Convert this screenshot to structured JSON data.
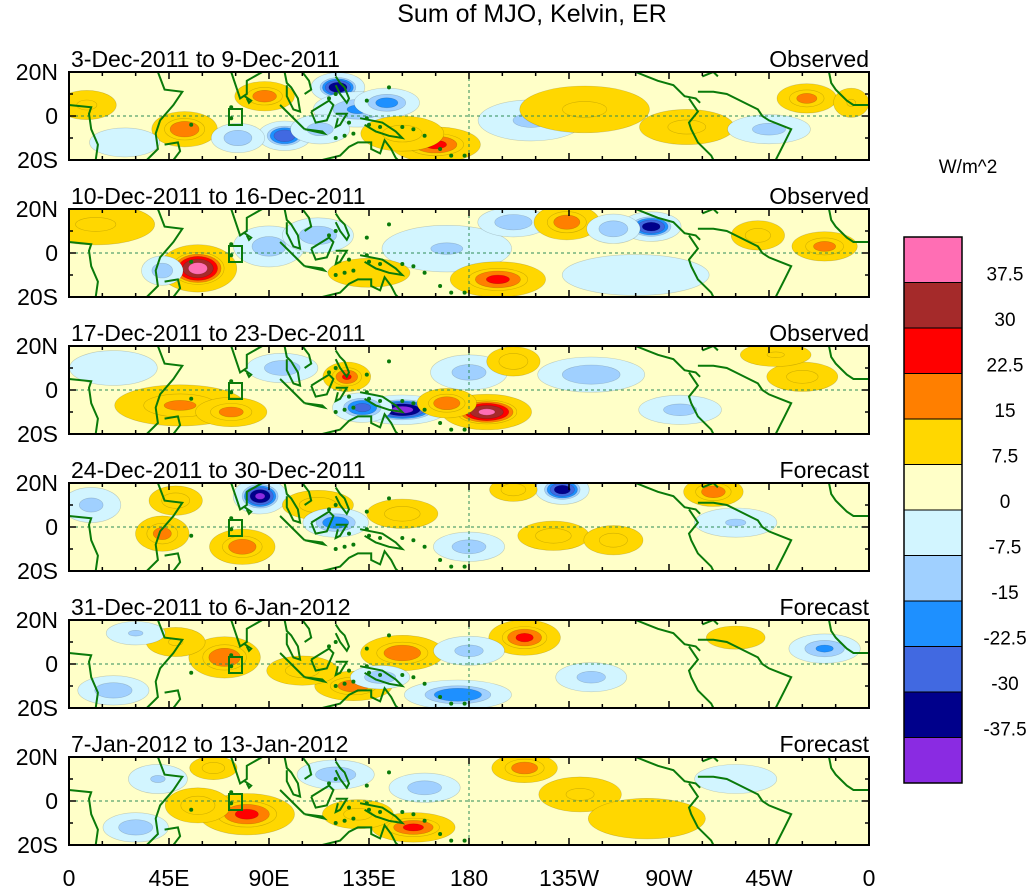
{
  "chart_data": {
    "type": "heatmap",
    "title": "Sum of MJO, Kelvin, ER",
    "xlabel": "",
    "ylabel": "",
    "lon_range": [
      0,
      360
    ],
    "lat_range": [
      -20,
      20
    ],
    "x_ticks": [
      {
        "lon": 0,
        "label": "0"
      },
      {
        "lon": 45,
        "label": "45E"
      },
      {
        "lon": 90,
        "label": "90E"
      },
      {
        "lon": 135,
        "label": "135E"
      },
      {
        "lon": 180,
        "label": "180"
      },
      {
        "lon": 225,
        "label": "135W"
      },
      {
        "lon": 270,
        "label": "90W"
      },
      {
        "lon": 315,
        "label": "45W"
      },
      {
        "lon": 360,
        "label": "0"
      }
    ],
    "y_ticks": [
      {
        "lat": 20,
        "label": "20N"
      },
      {
        "lat": 0,
        "label": "0"
      },
      {
        "lat": -20,
        "label": "20S"
      }
    ],
    "colorbar": {
      "units": "W/m^2",
      "levels": [
        "37.5",
        "30",
        "22.5",
        "15",
        "7.5",
        "0",
        "-7.5",
        "-15",
        "-22.5",
        "-30",
        "-37.5"
      ],
      "colors": [
        "#ff6eb4",
        "#a52a2a",
        "#ff0000",
        "#ff7f00",
        "#ffd700",
        "#ffffc8",
        "#d2f5ff",
        "#a0d0ff",
        "#1e90ff",
        "#4169e1",
        "#00008b",
        "#8a2be2"
      ]
    },
    "panels": [
      {
        "period": "3-Dec-2011 to 9-Dec-2011",
        "status": "Observed",
        "anomalies": [
          {
            "lon": 52,
            "lat": -6,
            "value": 22,
            "rlon": 11,
            "rlat": 6
          },
          {
            "lon": 88,
            "lat": 9,
            "value": 20,
            "rlon": 10,
            "rlat": 5
          },
          {
            "lon": 8,
            "lat": 5,
            "value": 9,
            "rlon": 10,
            "rlat": 5
          },
          {
            "lon": 97,
            "lat": -9,
            "value": -30,
            "rlon": 9,
            "rlat": 5
          },
          {
            "lon": 76,
            "lat": -10,
            "value": -14,
            "rlon": 9,
            "rlat": 5
          },
          {
            "lon": 121,
            "lat": 13,
            "value": -36,
            "rlon": 9,
            "rlat": 5
          },
          {
            "lon": 130,
            "lat": 3,
            "value": -16,
            "rlon": 15,
            "rlat": 6
          },
          {
            "lon": 143,
            "lat": 6,
            "value": -18,
            "rlon": 11,
            "rlat": 5
          },
          {
            "lon": 113,
            "lat": -6,
            "value": -11,
            "rlon": 10,
            "rlat": 5
          },
          {
            "lon": 165,
            "lat": -13,
            "value": 24,
            "rlon": 15,
            "rlat": 6
          },
          {
            "lon": 150,
            "lat": -8,
            "value": 12,
            "rlon": 14,
            "rlat": 6
          },
          {
            "lon": 208,
            "lat": -2,
            "value": -9,
            "rlon": 18,
            "rlat": 7
          },
          {
            "lon": 232,
            "lat": 3,
            "value": 9,
            "rlon": 22,
            "rlat": 8
          },
          {
            "lon": 278,
            "lat": -5,
            "value": 10,
            "rlon": 16,
            "rlat": 6
          },
          {
            "lon": 332,
            "lat": 8,
            "value": 18,
            "rlon": 10,
            "rlat": 5
          },
          {
            "lon": 352,
            "lat": 6,
            "value": 8,
            "rlon": 6,
            "rlat": 5
          },
          {
            "lon": 315,
            "lat": -6,
            "value": -10,
            "rlon": 14,
            "rlat": 5
          },
          {
            "lon": 25,
            "lat": -12,
            "value": -6,
            "rlon": 12,
            "rlat": 5
          }
        ]
      },
      {
        "period": "10-Dec-2011 to 16-Dec-2011",
        "status": "Observed",
        "anomalies": [
          {
            "lon": 58,
            "lat": -7,
            "value": 40,
            "rlon": 13,
            "rlat": 8
          },
          {
            "lon": 12,
            "lat": 13,
            "value": 9,
            "rlon": 20,
            "rlat": 7
          },
          {
            "lon": 42,
            "lat": -8,
            "value": -13,
            "rlon": 7,
            "rlat": 5
          },
          {
            "lon": 90,
            "lat": 3,
            "value": -12,
            "rlon": 12,
            "rlat": 7
          },
          {
            "lon": 112,
            "lat": 8,
            "value": -14,
            "rlon": 12,
            "rlat": 6
          },
          {
            "lon": 170,
            "lat": 2,
            "value": -8,
            "rlon": 22,
            "rlat": 8
          },
          {
            "lon": 193,
            "lat": -12,
            "value": 24,
            "rlon": 16,
            "rlat": 6
          },
          {
            "lon": 200,
            "lat": 14,
            "value": -14,
            "rlon": 12,
            "rlat": 5
          },
          {
            "lon": 224,
            "lat": 14,
            "value": 20,
            "rlon": 11,
            "rlat": 6
          },
          {
            "lon": 262,
            "lat": 12,
            "value": -34,
            "rlon": 10,
            "rlat": 5
          },
          {
            "lon": 245,
            "lat": 11,
            "value": -15,
            "rlon": 9,
            "rlat": 5
          },
          {
            "lon": 310,
            "lat": 8,
            "value": 12,
            "rlon": 9,
            "rlat": 5
          },
          {
            "lon": 340,
            "lat": 3,
            "value": 18,
            "rlon": 11,
            "rlat": 5
          },
          {
            "lon": 255,
            "lat": -10,
            "value": -7,
            "rlon": 25,
            "rlat": 7
          },
          {
            "lon": 135,
            "lat": -9,
            "value": 6,
            "rlon": 14,
            "rlat": 5
          }
        ]
      },
      {
        "period": "17-Dec-2011 to 23-Dec-2011",
        "status": "Observed",
        "anomalies": [
          {
            "lon": 50,
            "lat": -7,
            "value": 16,
            "rlon": 22,
            "rlat": 7
          },
          {
            "lon": 73,
            "lat": -10,
            "value": 18,
            "rlon": 12,
            "rlat": 5
          },
          {
            "lon": 125,
            "lat": 6,
            "value": 23,
            "rlon": 8,
            "rlat": 5
          },
          {
            "lon": 96,
            "lat": 10,
            "value": -13,
            "rlon": 12,
            "rlat": 5
          },
          {
            "lon": 150,
            "lat": -9,
            "value": -40,
            "rlon": 15,
            "rlat": 5
          },
          {
            "lon": 132,
            "lat": -8,
            "value": -25,
            "rlon": 10,
            "rlat": 5
          },
          {
            "lon": 188,
            "lat": -10,
            "value": 38,
            "rlon": 15,
            "rlat": 6
          },
          {
            "lon": 170,
            "lat": -6,
            "value": 22,
            "rlon": 10,
            "rlat": 5
          },
          {
            "lon": 180,
            "lat": 8,
            "value": -11,
            "rlon": 13,
            "rlat": 6
          },
          {
            "lon": 200,
            "lat": 13,
            "value": 15,
            "rlon": 9,
            "rlat": 5
          },
          {
            "lon": 235,
            "lat": 7,
            "value": -15,
            "rlon": 18,
            "rlat": 6
          },
          {
            "lon": 275,
            "lat": -9,
            "value": -10,
            "rlon": 14,
            "rlat": 5
          },
          {
            "lon": 330,
            "lat": 6,
            "value": 11,
            "rlon": 12,
            "rlat": 5
          },
          {
            "lon": 318,
            "lat": 16,
            "value": 8,
            "rlon": 12,
            "rlat": 4
          },
          {
            "lon": 20,
            "lat": 10,
            "value": -6,
            "rlon": 15,
            "rlat": 6
          }
        ]
      },
      {
        "period": "24-Dec-2011 to 30-Dec-2011",
        "status": "Forecast",
        "anomalies": [
          {
            "lon": 42,
            "lat": -3,
            "value": 18,
            "rlon": 9,
            "rlat": 6
          },
          {
            "lon": 48,
            "lat": 12,
            "value": 14,
            "rlon": 9,
            "rlat": 5
          },
          {
            "lon": 78,
            "lat": -9,
            "value": 21,
            "rlon": 11,
            "rlat": 6
          },
          {
            "lon": 86,
            "lat": 14,
            "value": -38,
            "rlon": 9,
            "rlat": 6
          },
          {
            "lon": 112,
            "lat": 10,
            "value": 14,
            "rlon": 12,
            "rlat": 5
          },
          {
            "lon": 120,
            "lat": 2,
            "value": -20,
            "rlon": 11,
            "rlat": 5
          },
          {
            "lon": 150,
            "lat": 6,
            "value": 13,
            "rlon": 12,
            "rlat": 5
          },
          {
            "lon": 180,
            "lat": -9,
            "value": -12,
            "rlon": 12,
            "rlat": 5
          },
          {
            "lon": 222,
            "lat": 17,
            "value": -34,
            "rlon": 9,
            "rlat": 5
          },
          {
            "lon": 200,
            "lat": 17,
            "value": 14,
            "rlon": 8,
            "rlat": 4
          },
          {
            "lon": 218,
            "lat": -4,
            "value": 13,
            "rlon": 12,
            "rlat": 5
          },
          {
            "lon": 245,
            "lat": -6,
            "value": 12,
            "rlon": 10,
            "rlat": 5
          },
          {
            "lon": 290,
            "lat": 16,
            "value": 20,
            "rlon": 10,
            "rlat": 5
          },
          {
            "lon": 10,
            "lat": 10,
            "value": -10,
            "rlon": 10,
            "rlat": 6
          },
          {
            "lon": 300,
            "lat": 2,
            "value": -8,
            "rlon": 14,
            "rlat": 5
          }
        ]
      },
      {
        "period": "31-Dec-2011 to 6-Jan-2012",
        "status": "Forecast",
        "anomalies": [
          {
            "lon": 70,
            "lat": 3,
            "value": 22,
            "rlon": 12,
            "rlat": 7
          },
          {
            "lon": 48,
            "lat": 10,
            "value": 8,
            "rlon": 10,
            "rlat": 5
          },
          {
            "lon": 150,
            "lat": 5,
            "value": 22,
            "rlon": 14,
            "rlat": 6
          },
          {
            "lon": 128,
            "lat": -10,
            "value": 20,
            "rlon": 13,
            "rlat": 5
          },
          {
            "lon": 105,
            "lat": -3,
            "value": 12,
            "rlon": 12,
            "rlat": 5
          },
          {
            "lon": 175,
            "lat": -14,
            "value": -22,
            "rlon": 18,
            "rlat": 5
          },
          {
            "lon": 140,
            "lat": -6,
            "value": -14,
            "rlon": 10,
            "rlat": 4
          },
          {
            "lon": 205,
            "lat": 12,
            "value": 24,
            "rlon": 12,
            "rlat": 6
          },
          {
            "lon": 180,
            "lat": 6,
            "value": -10,
            "rlon": 12,
            "rlat": 5
          },
          {
            "lon": 235,
            "lat": -6,
            "value": -10,
            "rlon": 12,
            "rlat": 5
          },
          {
            "lon": 340,
            "lat": 7,
            "value": -16,
            "rlon": 12,
            "rlat": 5
          },
          {
            "lon": 20,
            "lat": -12,
            "value": -14,
            "rlon": 12,
            "rlat": 5
          },
          {
            "lon": 30,
            "lat": 14,
            "value": -8,
            "rlon": 10,
            "rlat": 4
          },
          {
            "lon": 300,
            "lat": 12,
            "value": 7,
            "rlon": 10,
            "rlat": 4
          }
        ]
      },
      {
        "period": "7-Jan-2012 to 13-Jan-2012",
        "status": "Forecast",
        "anomalies": [
          {
            "lon": 80,
            "lat": -6,
            "value": 24,
            "rlon": 16,
            "rlat": 7
          },
          {
            "lon": 58,
            "lat": -2,
            "value": 14,
            "rlon": 11,
            "rlat": 6
          },
          {
            "lon": 65,
            "lat": 15,
            "value": 12,
            "rlon": 8,
            "rlat": 4
          },
          {
            "lon": 155,
            "lat": -12,
            "value": 24,
            "rlon": 14,
            "rlat": 5
          },
          {
            "lon": 130,
            "lat": -6,
            "value": 10,
            "rlon": 12,
            "rlat": 5
          },
          {
            "lon": 205,
            "lat": 15,
            "value": 20,
            "rlon": 11,
            "rlat": 5
          },
          {
            "lon": 230,
            "lat": 3,
            "value": 9,
            "rlon": 14,
            "rlat": 6
          },
          {
            "lon": 120,
            "lat": 12,
            "value": -14,
            "rlon": 13,
            "rlat": 5
          },
          {
            "lon": 160,
            "lat": 6,
            "value": -12,
            "rlon": 12,
            "rlat": 5
          },
          {
            "lon": 30,
            "lat": -12,
            "value": -14,
            "rlon": 11,
            "rlat": 5
          },
          {
            "lon": 40,
            "lat": 10,
            "value": -8,
            "rlon": 10,
            "rlat": 5
          },
          {
            "lon": 260,
            "lat": -8,
            "value": 6,
            "rlon": 20,
            "rlat": 7
          },
          {
            "lon": 300,
            "lat": 10,
            "value": -7,
            "rlon": 14,
            "rlat": 5
          }
        ]
      }
    ]
  }
}
